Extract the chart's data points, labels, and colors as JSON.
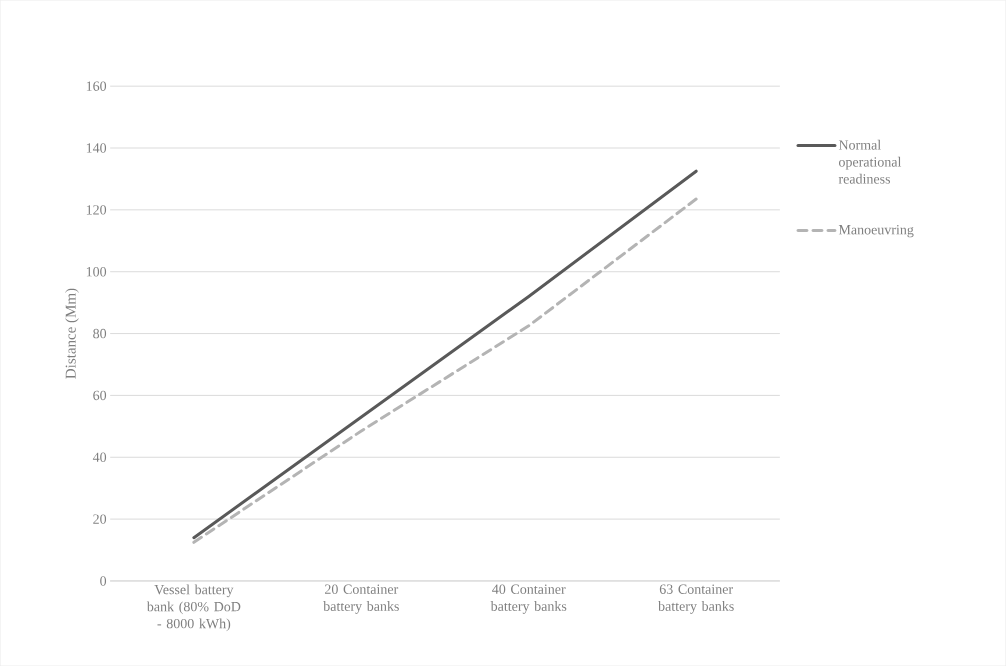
{
  "chart_data": {
    "type": "line",
    "ylabel": "Distance (Mm)",
    "categories": [
      "Vessel battery bank (80% DoD - 8000 kWh)",
      "20 Container battery banks",
      "40 Container battery banks",
      "63 Container battery banks"
    ],
    "series": [
      {
        "name": "Normal operational readiness",
        "color": "#595959",
        "values": [
          14,
          53,
          92,
          132.5
        ],
        "line_style": "solid"
      },
      {
        "name": "Manoeuvring",
        "color": "#b4b4b4",
        "values": [
          12.5,
          48.5,
          82.5,
          123.5
        ],
        "line_style": "dashed"
      }
    ],
    "ylim": [
      0,
      160
    ],
    "yticks": [
      0,
      20,
      40,
      60,
      80,
      100,
      120,
      140,
      160
    ],
    "grid": "y",
    "legend": "right",
    "marker": "none"
  }
}
